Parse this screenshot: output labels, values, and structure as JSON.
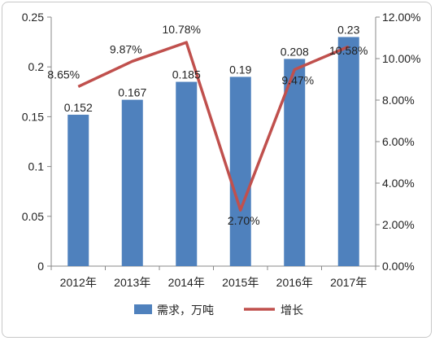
{
  "chart_data": {
    "type": "bar+line",
    "categories": [
      "2012年",
      "2013年",
      "2014年",
      "2015年",
      "2016年",
      "2017年"
    ],
    "series": [
      {
        "name": "需求，万吨",
        "type": "bar",
        "axis": "left",
        "color": "#4F81BD",
        "values": [
          0.152,
          0.167,
          0.185,
          0.19,
          0.208,
          0.23
        ],
        "labels": [
          "0.152",
          "0.167",
          "0.185",
          "0.19",
          "0.208",
          "0.23"
        ]
      },
      {
        "name": "增长",
        "type": "line",
        "axis": "right",
        "color": "#C0504D",
        "values": [
          8.65,
          9.87,
          10.78,
          2.7,
          9.47,
          10.58
        ],
        "labels": [
          "8.65%",
          "9.87%",
          "10.78%",
          "2.70%",
          "9.47%",
          "10.58%"
        ]
      }
    ],
    "left_axis": {
      "ylim": [
        0,
        0.25
      ],
      "ticks": [
        0,
        0.05,
        0.1,
        0.15,
        0.2,
        0.25
      ],
      "tick_labels": [
        "0",
        "0.05",
        "0.1",
        "0.15",
        "0.2",
        "0.25"
      ]
    },
    "right_axis": {
      "ylim": [
        0,
        12
      ],
      "ticks": [
        0,
        2,
        4,
        6,
        8,
        10,
        12
      ],
      "tick_labels": [
        "0.00%",
        "2.00%",
        "4.00%",
        "6.00%",
        "8.00%",
        "10.00%",
        "12.00%"
      ]
    },
    "legend_position": "bottom",
    "grid": false
  }
}
